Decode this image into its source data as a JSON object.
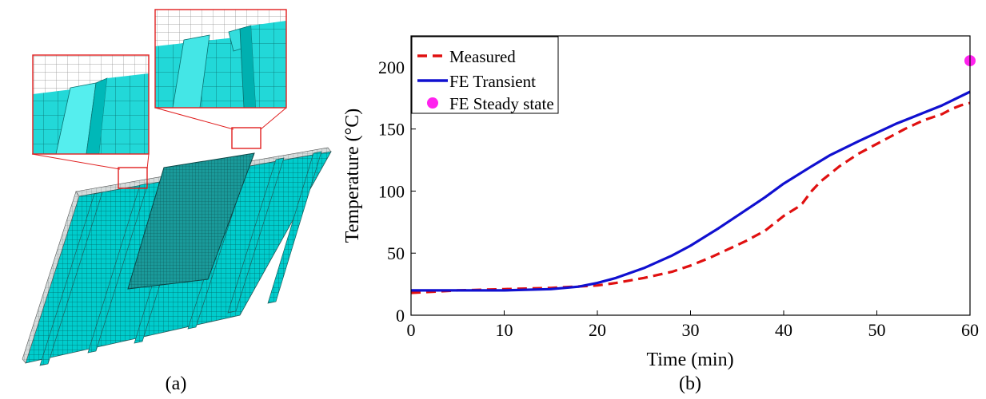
{
  "panel_a": {
    "label": "(a)",
    "colors": {
      "mesh": "#00cccc",
      "mesh_light": "#33e0e0",
      "mesh_dark": "#008c8c",
      "top_face": "#cfd6d6",
      "callout": "#e02020"
    }
  },
  "panel_b": {
    "label": "(b)"
  },
  "chart_data": {
    "type": "line",
    "xlabel": "Time (min)",
    "ylabel": "Temperature (°C)",
    "xlim": [
      0,
      60
    ],
    "ylim": [
      0,
      225
    ],
    "xticks": [
      0,
      10,
      20,
      30,
      40,
      50,
      60
    ],
    "yticks": [
      0,
      50,
      100,
      150,
      200
    ],
    "grid": false,
    "legend_position": "top-left",
    "series": [
      {
        "name": "Measured",
        "style": "dashed",
        "color": "#e01010",
        "x": [
          0,
          5,
          10,
          15,
          20,
          22,
          25,
          28,
          30,
          32,
          34,
          36,
          37,
          38,
          40,
          41.5,
          42,
          43,
          44,
          46,
          48,
          50,
          52,
          53,
          55,
          57,
          58,
          59,
          60
        ],
        "y": [
          18,
          20,
          21,
          22,
          24,
          26,
          30,
          35,
          40,
          46,
          53,
          60,
          64,
          68,
          80,
          87,
          90,
          100,
          108,
          120,
          130,
          138,
          146,
          150,
          157,
          162,
          166,
          169,
          171
        ]
      },
      {
        "name": "FE Transient",
        "style": "solid",
        "color": "#1010d0",
        "x": [
          0,
          5,
          10,
          15,
          18,
          20,
          22,
          25,
          28,
          30,
          33,
          35,
          38,
          40,
          43,
          45,
          48,
          50,
          52,
          55,
          57,
          60
        ],
        "y": [
          20,
          20,
          20,
          21,
          23,
          26,
          30,
          38,
          48,
          56,
          70,
          80,
          95,
          106,
          120,
          129,
          140,
          147,
          154,
          163,
          169,
          180
        ]
      },
      {
        "name": "FE Steady state",
        "style": "marker",
        "color": "#ff22ee",
        "x": [
          60
        ],
        "y": [
          205
        ]
      }
    ]
  }
}
